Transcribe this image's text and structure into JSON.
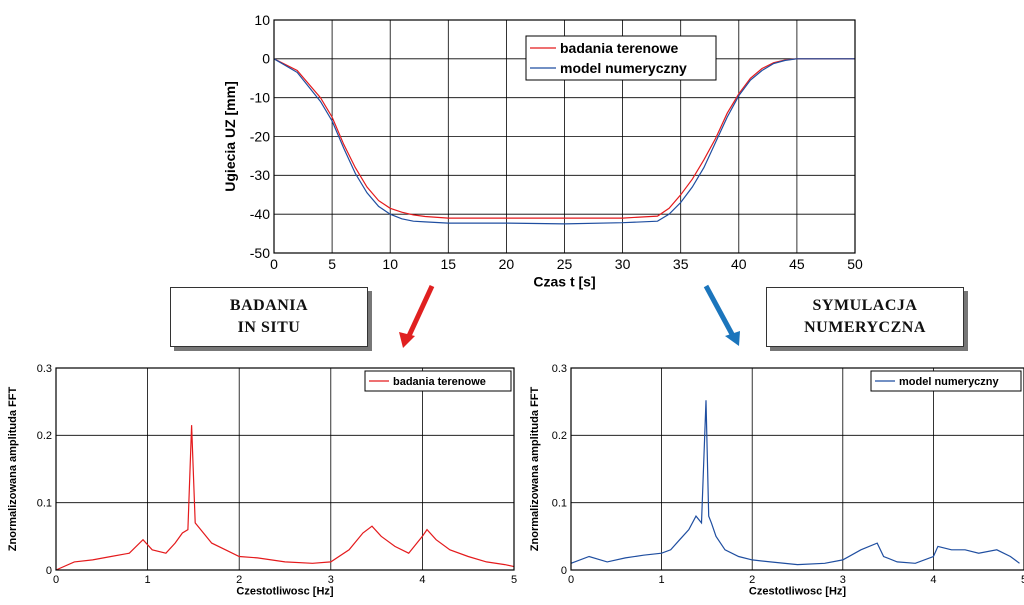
{
  "callouts": {
    "left": [
      "BADANIA",
      "IN SITU"
    ],
    "right": [
      "SYMULACJA",
      "NUMERYCZNA"
    ]
  },
  "colors": {
    "red": "#e41a1c",
    "blue": "#1f4ea0",
    "arrow_red": "#e02020",
    "arrow_blue": "#1b75bc"
  },
  "chart_data": [
    {
      "type": "line",
      "xlabel": "Czas t [s]",
      "ylabel": "Ugiecia UZ [mm]",
      "xlim": [
        0,
        50
      ],
      "ylim": [
        -50,
        10
      ],
      "xticks": [
        0,
        5,
        10,
        15,
        20,
        25,
        30,
        35,
        40,
        45,
        50
      ],
      "yticks": [
        10,
        0,
        -10,
        -20,
        -30,
        -40,
        -50
      ],
      "grid": true,
      "legend": "top-right",
      "series": [
        {
          "name": "badania terenowe",
          "color": "#e41a1c",
          "x": [
            0,
            2,
            4,
            5,
            6,
            7,
            8,
            9,
            10,
            11,
            12,
            13,
            15,
            20,
            25,
            30,
            33,
            34,
            35,
            36,
            37,
            38,
            39,
            40,
            41,
            42,
            43,
            44,
            45,
            47,
            50
          ],
          "y": [
            0,
            -3,
            -10,
            -15,
            -22,
            -28,
            -33,
            -36.5,
            -38.5,
            -39.5,
            -40.2,
            -40.6,
            -41,
            -41,
            -41,
            -41,
            -40.5,
            -38.5,
            -35,
            -31,
            -26,
            -20.5,
            -14,
            -9,
            -5,
            -2.5,
            -1,
            -0.3,
            0,
            0,
            0
          ]
        },
        {
          "name": "model numeryczny",
          "color": "#1f4ea0",
          "x": [
            0,
            2,
            4,
            5,
            6,
            7,
            8,
            9,
            10,
            11,
            12,
            13,
            15,
            20,
            25,
            30,
            33,
            34,
            35,
            36,
            37,
            38,
            39,
            40,
            41,
            42,
            43,
            44,
            45,
            47,
            50
          ],
          "y": [
            0,
            -3.5,
            -11,
            -16,
            -23,
            -29.5,
            -34.5,
            -38,
            -40,
            -41.2,
            -41.8,
            -42,
            -42.3,
            -42.3,
            -42.5,
            -42.2,
            -41.8,
            -40,
            -37,
            -33,
            -28,
            -21.5,
            -15,
            -9.5,
            -5.5,
            -3,
            -1.2,
            -0.4,
            0,
            0,
            0
          ]
        }
      ]
    },
    {
      "type": "line",
      "xlabel": "Czestotliwosc [Hz]",
      "ylabel": "Znormalizowana amplituda FFT",
      "xlim": [
        0,
        5
      ],
      "ylim": [
        0,
        0.3
      ],
      "xticks": [
        0,
        1,
        2,
        3,
        4,
        5
      ],
      "yticks": [
        0.3,
        0.2,
        0.1,
        0
      ],
      "grid": true,
      "legend": "top-right",
      "series": [
        {
          "name": "badania terenowe",
          "color": "#e41a1c",
          "x": [
            0,
            0.2,
            0.4,
            0.6,
            0.8,
            0.95,
            1.05,
            1.2,
            1.3,
            1.38,
            1.44,
            1.48,
            1.52,
            1.58,
            1.7,
            1.85,
            2.0,
            2.2,
            2.5,
            2.8,
            3.0,
            3.2,
            3.35,
            3.45,
            3.55,
            3.7,
            3.85,
            4.0,
            4.05,
            4.15,
            4.3,
            4.5,
            4.7,
            4.9,
            5.0
          ],
          "y": [
            0,
            0.012,
            0.015,
            0.02,
            0.025,
            0.045,
            0.03,
            0.025,
            0.04,
            0.055,
            0.06,
            0.215,
            0.07,
            0.06,
            0.04,
            0.03,
            0.02,
            0.018,
            0.012,
            0.01,
            0.012,
            0.03,
            0.055,
            0.065,
            0.05,
            0.035,
            0.025,
            0.05,
            0.06,
            0.045,
            0.03,
            0.02,
            0.012,
            0.008,
            0.005
          ]
        }
      ]
    },
    {
      "type": "line",
      "xlabel": "Czestotliwosc [Hz]",
      "ylabel": "Znormalizowana amplituda FFT",
      "xlim": [
        0,
        5
      ],
      "ylim": [
        0,
        0.3
      ],
      "xticks": [
        0,
        1,
        2,
        3,
        4,
        5
      ],
      "yticks": [
        0.3,
        0.2,
        0.1,
        0
      ],
      "grid": true,
      "legend": "top-right",
      "series": [
        {
          "name": "model numeryczny",
          "color": "#1f4ea0",
          "x": [
            0,
            0.2,
            0.4,
            0.6,
            0.8,
            1.0,
            1.1,
            1.2,
            1.3,
            1.38,
            1.44,
            1.49,
            1.52,
            1.55,
            1.6,
            1.7,
            1.85,
            2.0,
            2.2,
            2.5,
            2.8,
            3.0,
            3.2,
            3.38,
            3.45,
            3.6,
            3.8,
            4.0,
            4.05,
            4.2,
            4.35,
            4.5,
            4.7,
            4.85,
            4.95
          ],
          "y": [
            0.01,
            0.02,
            0.012,
            0.018,
            0.022,
            0.025,
            0.03,
            0.045,
            0.06,
            0.08,
            0.07,
            0.252,
            0.08,
            0.07,
            0.05,
            0.03,
            0.02,
            0.015,
            0.012,
            0.008,
            0.01,
            0.015,
            0.03,
            0.04,
            0.02,
            0.012,
            0.01,
            0.02,
            0.035,
            0.03,
            0.03,
            0.025,
            0.03,
            0.02,
            0.01
          ]
        }
      ]
    }
  ]
}
